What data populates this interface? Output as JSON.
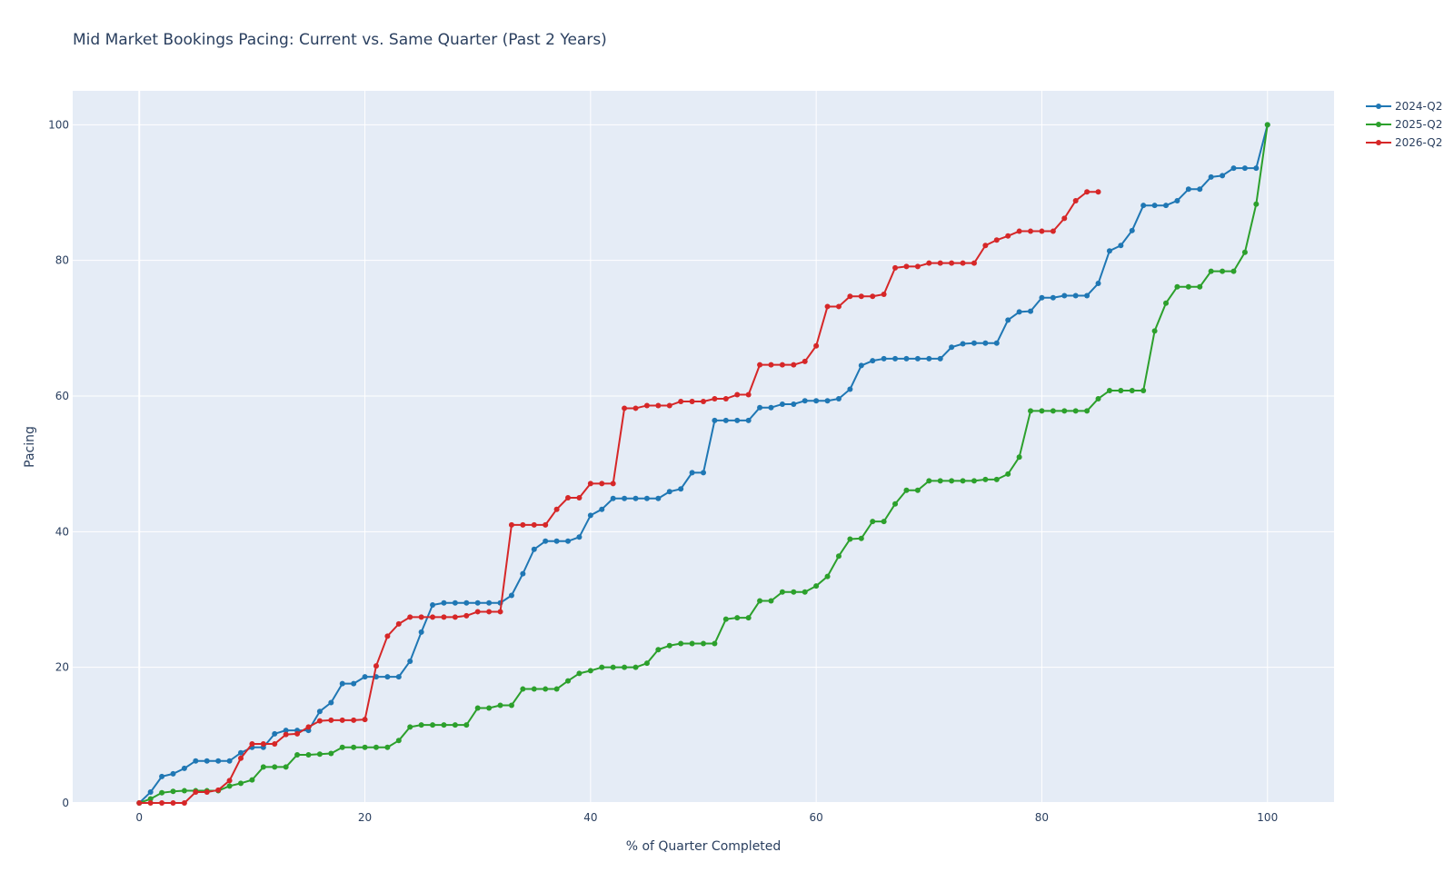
{
  "chart_data": {
    "type": "line",
    "title": "Mid Market Bookings Pacing: Current vs. Same Quarter (Past 2 Years)",
    "xlabel": "% of Quarter Completed",
    "ylabel": "Pacing",
    "xlim": [
      -5.9,
      105.9
    ],
    "ylim": [
      0,
      105
    ],
    "xticks": [
      0,
      20,
      40,
      60,
      80,
      100
    ],
    "yticks": [
      0,
      20,
      40,
      60,
      80,
      100
    ],
    "grid": true,
    "legend_position": "top-right, outside plot",
    "plot_background": "#e5ecf6",
    "series": [
      {
        "name": "2024-Q2",
        "color": "#1f77b4",
        "x": [
          0,
          1,
          2,
          3,
          4,
          5,
          6,
          7,
          8,
          9,
          10,
          11,
          12,
          13,
          14,
          15,
          16,
          17,
          18,
          19,
          20,
          21,
          22,
          23,
          24,
          25,
          26,
          27,
          28,
          29,
          30,
          31,
          32,
          33,
          34,
          35,
          36,
          37,
          38,
          39,
          40,
          41,
          42,
          43,
          44,
          45,
          46,
          47,
          48,
          49,
          50,
          51,
          52,
          53,
          54,
          55,
          56,
          57,
          58,
          59,
          60,
          61,
          62,
          63,
          64,
          65,
          66,
          67,
          68,
          69,
          70,
          71,
          72,
          73,
          74,
          75,
          76,
          77,
          78,
          79,
          80,
          81,
          82,
          83,
          84,
          85,
          86,
          87,
          88,
          89,
          90,
          91,
          92,
          93,
          94,
          95,
          96,
          97,
          98,
          99,
          100
        ],
        "y": [
          0,
          1.6,
          3.9,
          4.3,
          5.1,
          6.2,
          6.2,
          6.2,
          6.2,
          7.4,
          8.2,
          8.2,
          10.2,
          10.7,
          10.7,
          10.7,
          13.5,
          14.8,
          17.6,
          17.6,
          18.6,
          18.6,
          18.6,
          18.6,
          20.9,
          25.2,
          29.2,
          29.5,
          29.5,
          29.5,
          29.5,
          29.5,
          29.5,
          30.6,
          33.8,
          37.4,
          38.6,
          38.6,
          38.6,
          39.2,
          42.4,
          43.3,
          44.9,
          44.9,
          44.9,
          44.9,
          44.9,
          45.9,
          46.3,
          48.7,
          48.7,
          56.4,
          56.4,
          56.4,
          56.4,
          58.3,
          58.3,
          58.8,
          58.8,
          59.3,
          59.3,
          59.3,
          59.6,
          61.0,
          64.5,
          65.2,
          65.5,
          65.5,
          65.5,
          65.5,
          65.5,
          65.5,
          67.2,
          67.7,
          67.8,
          67.8,
          67.8,
          71.2,
          72.4,
          72.5,
          74.5,
          74.5,
          74.8,
          74.8,
          74.8,
          76.6,
          81.4,
          82.2,
          84.4,
          88.1,
          88.1,
          88.1,
          88.8,
          90.5,
          90.5,
          92.3,
          92.5,
          93.6,
          93.6,
          93.6,
          100
        ]
      },
      {
        "name": "2025-Q2",
        "color": "#2ca02c",
        "x": [
          0,
          1,
          2,
          3,
          4,
          5,
          6,
          7,
          8,
          9,
          10,
          11,
          12,
          13,
          14,
          15,
          16,
          17,
          18,
          19,
          20,
          21,
          22,
          23,
          24,
          25,
          26,
          27,
          28,
          29,
          30,
          31,
          32,
          33,
          34,
          35,
          36,
          37,
          38,
          39,
          40,
          41,
          42,
          43,
          44,
          45,
          46,
          47,
          48,
          49,
          50,
          51,
          52,
          53,
          54,
          55,
          56,
          57,
          58,
          59,
          60,
          61,
          62,
          63,
          64,
          65,
          66,
          67,
          68,
          69,
          70,
          71,
          72,
          73,
          74,
          75,
          76,
          77,
          78,
          79,
          80,
          81,
          82,
          83,
          84,
          85,
          86,
          87,
          88,
          89,
          90,
          91,
          92,
          93,
          94,
          95,
          96,
          97,
          98,
          99,
          100
        ],
        "y": [
          0,
          0.6,
          1.5,
          1.7,
          1.8,
          1.8,
          1.8,
          1.8,
          2.5,
          2.9,
          3.4,
          5.3,
          5.3,
          5.3,
          7.1,
          7.1,
          7.2,
          7.3,
          8.2,
          8.2,
          8.2,
          8.2,
          8.2,
          9.2,
          11.2,
          11.5,
          11.5,
          11.5,
          11.5,
          11.5,
          14.0,
          14.0,
          14.4,
          14.4,
          16.8,
          16.8,
          16.8,
          16.8,
          18.0,
          19.1,
          19.5,
          20.0,
          20.0,
          20.0,
          20.0,
          20.6,
          22.6,
          23.2,
          23.5,
          23.5,
          23.5,
          23.5,
          27.1,
          27.3,
          27.3,
          29.8,
          29.8,
          31.1,
          31.1,
          31.1,
          32.0,
          33.4,
          36.4,
          38.9,
          39.0,
          41.5,
          41.5,
          44.1,
          46.1,
          46.1,
          47.5,
          47.5,
          47.5,
          47.5,
          47.5,
          47.7,
          47.7,
          48.5,
          51.0,
          57.8,
          57.8,
          57.8,
          57.8,
          57.8,
          57.8,
          59.6,
          60.8,
          60.8,
          60.8,
          60.8,
          69.6,
          73.7,
          76.1,
          76.1,
          76.1,
          78.4,
          78.4,
          78.4,
          81.2,
          88.3,
          100
        ]
      },
      {
        "name": "2026-Q2",
        "color": "#d62728",
        "x": [
          0,
          1,
          2,
          3,
          4,
          5,
          6,
          7,
          8,
          9,
          10,
          11,
          12,
          13,
          14,
          15,
          16,
          17,
          18,
          19,
          20,
          21,
          22,
          23,
          24,
          25,
          26,
          27,
          28,
          29,
          30,
          31,
          32,
          33,
          34,
          35,
          36,
          37,
          38,
          39,
          40,
          41,
          42,
          43,
          44,
          45,
          46,
          47,
          48,
          49,
          50,
          51,
          52,
          53,
          54,
          55,
          56,
          57,
          58,
          59,
          60,
          61,
          62,
          63,
          64,
          65,
          66,
          67,
          68,
          69,
          70,
          71,
          72,
          73,
          74,
          75,
          76,
          77,
          78,
          79,
          80,
          81,
          82,
          83,
          84,
          85
        ],
        "y": [
          0,
          0,
          0,
          0,
          0,
          1.6,
          1.6,
          1.9,
          3.3,
          6.6,
          8.7,
          8.7,
          8.7,
          10.1,
          10.2,
          11.2,
          12.1,
          12.2,
          12.2,
          12.2,
          12.3,
          20.2,
          24.6,
          26.4,
          27.4,
          27.4,
          27.4,
          27.4,
          27.4,
          27.6,
          28.2,
          28.2,
          28.2,
          41.0,
          41.0,
          41.0,
          41.0,
          43.3,
          45.0,
          45.0,
          47.1,
          47.1,
          47.1,
          58.2,
          58.2,
          58.6,
          58.6,
          58.6,
          59.2,
          59.2,
          59.2,
          59.6,
          59.6,
          60.2,
          60.2,
          64.6,
          64.6,
          64.6,
          64.6,
          65.1,
          67.4,
          73.2,
          73.2,
          74.7,
          74.7,
          74.7,
          75.0,
          78.9,
          79.1,
          79.1,
          79.6,
          79.6,
          79.6,
          79.6,
          79.6,
          82.2,
          83.0,
          83.6,
          84.3,
          84.3,
          84.3,
          84.3,
          86.2,
          88.8,
          90.1,
          90.1
        ]
      }
    ]
  }
}
